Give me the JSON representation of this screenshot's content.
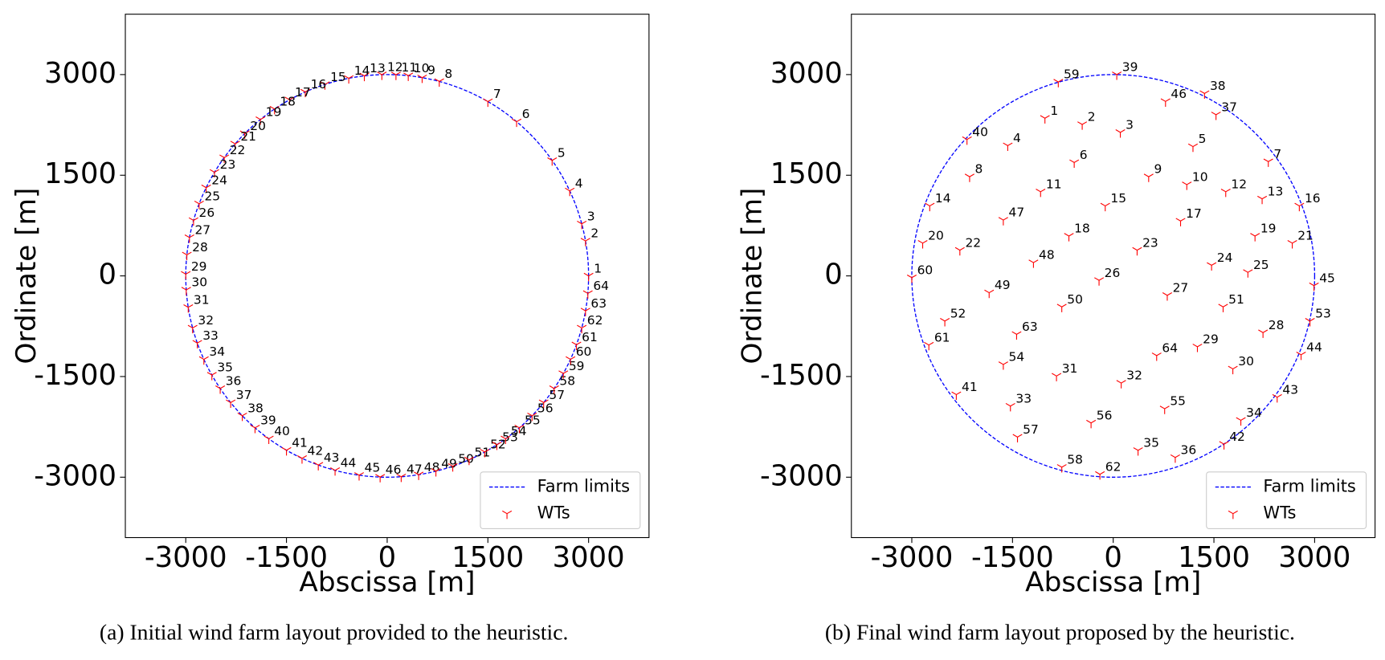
{
  "chart_data": [
    {
      "type": "scatter",
      "caption": "(a) Initial wind farm layout provided to the heuristic.",
      "x_label": "Abscissa [m]",
      "y_label": "Ordinate [m]",
      "xlim": [
        -3900,
        3900
      ],
      "ylim": [
        -3900,
        3900
      ],
      "xticks": [
        -3000,
        -1500,
        0,
        1500,
        3000
      ],
      "yticks": [
        -3000,
        -1500,
        0,
        1500,
        3000
      ],
      "legend": "lower right",
      "series": [
        {
          "name": "Farm limits",
          "color": "#0000ff",
          "radius": 3000
        },
        {
          "name": "WTs",
          "color": "#ff0000",
          "labels": [
            1,
            2,
            3,
            4,
            5,
            6,
            7,
            8,
            9,
            10,
            11,
            12,
            13,
            14,
            15,
            16,
            17,
            18,
            19,
            20,
            21,
            22,
            23,
            24,
            25,
            26,
            27,
            28,
            29,
            30,
            31,
            32,
            33,
            34,
            35,
            36,
            37,
            38,
            39,
            40,
            41,
            42,
            43,
            44,
            45,
            46,
            47,
            48,
            49,
            50,
            51,
            52,
            53,
            54,
            55,
            56,
            57,
            58,
            59,
            60,
            61,
            62,
            63,
            64
          ],
          "x": [
            3000,
            2954,
            2898,
            2719,
            2457,
            1928,
            1500,
            776,
            521,
            314,
            131,
            -79,
            -340,
            -572,
            -927,
            -1220,
            -1454,
            -1678,
            -1888,
            -2121,
            -2264,
            -2427,
            -2572,
            -2696,
            -2801,
            -2884,
            -2945,
            -2984,
            -3000,
            -2993,
            -2963,
            -2898,
            -2828,
            -2730,
            -2611,
            -2487,
            -2331,
            -2158,
            -1968,
            -1763,
            -1500,
            -1268,
            -1026,
            -776,
            -418,
            -105,
            209,
            469,
            726,
            977,
            1220,
            1454,
            1634,
            1763,
            1968,
            2158,
            2331,
            2487,
            2624,
            2730,
            2819,
            2898,
            2954,
            2989
          ],
          "y": [
            0,
            521,
            776,
            1268,
            1721,
            2298,
            2598,
            2898,
            2954,
            2984,
            2997,
            2999,
            2981,
            2945,
            2853,
            2741,
            2624,
            2487,
            2331,
            2121,
            1968,
            1763,
            1545,
            1315,
            1075,
            827,
            572,
            314,
            26,
            -209,
            -469,
            -776,
            -1001,
            -1244,
            -1477,
            -1678,
            -1888,
            -2084,
            -2264,
            -2427,
            -2598,
            -2719,
            -2819,
            -2898,
            -2971,
            -2998,
            -2993,
            -2963,
            -2911,
            -2837,
            -2741,
            -2624,
            -2516,
            -2427,
            -2264,
            -2084,
            -1888,
            -1678,
            -1454,
            -1244,
            -1026,
            -776,
            -521,
            -261
          ]
        }
      ]
    },
    {
      "type": "scatter",
      "caption": "(b) Final wind farm layout proposed by the heuristic.",
      "x_label": "Abscissa [m]",
      "y_label": "Ordinate [m]",
      "xlim": [
        -3900,
        3900
      ],
      "ylim": [
        -3900,
        3900
      ],
      "xticks": [
        -3000,
        -1500,
        0,
        1500,
        3000
      ],
      "yticks": [
        -3000,
        -1500,
        0,
        1500,
        3000
      ],
      "legend": "lower right",
      "series": [
        {
          "name": "Farm limits",
          "color": "#0000ff",
          "radius": 3000
        },
        {
          "name": "WTs",
          "color": "#ff0000",
          "labels": [
            1,
            2,
            3,
            4,
            5,
            6,
            7,
            8,
            9,
            10,
            11,
            12,
            13,
            14,
            15,
            16,
            17,
            18,
            19,
            20,
            21,
            22,
            23,
            24,
            25,
            26,
            27,
            28,
            29,
            30,
            31,
            32,
            33,
            34,
            35,
            36,
            37,
            38,
            39,
            40,
            41,
            42,
            43,
            44,
            45,
            46,
            47,
            48,
            49,
            50,
            51,
            52,
            53,
            54,
            55,
            56,
            57,
            58,
            59,
            60,
            61,
            62,
            63,
            64
          ],
          "x": [
            -1017,
            -462,
            106,
            -1571,
            1188,
            -581,
            2310,
            -2139,
            528,
            1096,
            -1082,
            1676,
            2218,
            -2733,
            -119,
            2772,
            1003,
            -660,
            2112,
            -2838,
            2667,
            -2284,
            356,
            1465,
            2006,
            -211,
            805,
            2231,
            1254,
            1782,
            -845,
            119,
            -1531,
            1901,
            370,
            924,
            1531,
            1360,
            53,
            -2178,
            -2337,
            1650,
            2442,
            2798,
            2990,
            779,
            -1637,
            -1188,
            -1848,
            -766,
            1637,
            -2508,
            2930,
            -1637,
            766,
            -330,
            -1426,
            -766,
            -818,
            -3000,
            -2746,
            -198,
            -1439,
            647
          ],
          "y": [
            2350,
            2257,
            2139,
            1941,
            1927,
            1690,
            1703,
            1478,
            1478,
            1360,
            1254,
            1254,
            1148,
            1043,
            1043,
            1043,
            818,
            594,
            594,
            488,
            488,
            383,
            383,
            158,
            53,
            -66,
            -290,
            -845,
            -1056,
            -1386,
            -1492,
            -1597,
            -1940,
            -2152,
            -2600,
            -2706,
            2402,
            2719,
            3000,
            2033,
            -1769,
            -2508,
            -1808,
            -1175,
            -145,
            2600,
            832,
            198,
            -251,
            -462,
            -462,
            -673,
            -673,
            -1320,
            -1980,
            -2191,
            -2402,
            -2851,
            2890,
            -26,
            -1030,
            -2957,
            -871,
            -1188
          ]
        }
      ]
    }
  ]
}
